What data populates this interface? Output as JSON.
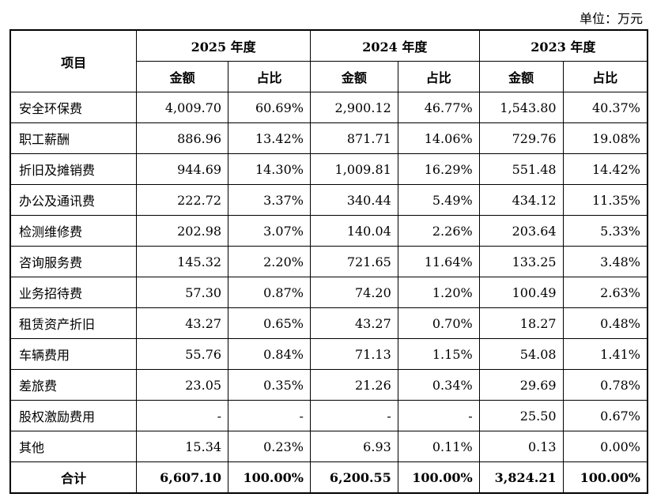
{
  "unit": "单位：万元",
  "header": {
    "item": "项目",
    "years": [
      "2025 年度",
      "2024 年度",
      "2023 年度"
    ],
    "amount": "金额",
    "ratio": "占比"
  },
  "rows": [
    {
      "label": "安全环保费",
      "v": [
        "4,009.70",
        "60.69%",
        "2,900.12",
        "46.77%",
        "1,543.80",
        "40.37%"
      ]
    },
    {
      "label": "职工薪酬",
      "v": [
        "886.96",
        "13.42%",
        "871.71",
        "14.06%",
        "729.76",
        "19.08%"
      ]
    },
    {
      "label": "折旧及摊销费",
      "v": [
        "944.69",
        "14.30%",
        "1,009.81",
        "16.29%",
        "551.48",
        "14.42%"
      ]
    },
    {
      "label": "办公及通讯费",
      "v": [
        "222.72",
        "3.37%",
        "340.44",
        "5.49%",
        "434.12",
        "11.35%"
      ]
    },
    {
      "label": "检测维修费",
      "v": [
        "202.98",
        "3.07%",
        "140.04",
        "2.26%",
        "203.64",
        "5.33%"
      ]
    },
    {
      "label": "咨询服务费",
      "v": [
        "145.32",
        "2.20%",
        "721.65",
        "11.64%",
        "133.25",
        "3.48%"
      ]
    },
    {
      "label": "业务招待费",
      "v": [
        "57.30",
        "0.87%",
        "74.20",
        "1.20%",
        "100.49",
        "2.63%"
      ]
    },
    {
      "label": "租赁资产折旧",
      "v": [
        "43.27",
        "0.65%",
        "43.27",
        "0.70%",
        "18.27",
        "0.48%"
      ]
    },
    {
      "label": "车辆费用",
      "v": [
        "55.76",
        "0.84%",
        "71.13",
        "1.15%",
        "54.08",
        "1.41%"
      ]
    },
    {
      "label": "差旅费",
      "v": [
        "23.05",
        "0.35%",
        "21.26",
        "0.34%",
        "29.69",
        "0.78%"
      ]
    },
    {
      "label": "股权激励费用",
      "v": [
        "-",
        "-",
        "-",
        "-",
        "25.50",
        "0.67%"
      ]
    },
    {
      "label": "其他",
      "v": [
        "15.34",
        "0.23%",
        "6.93",
        "0.11%",
        "0.13",
        "0.00%"
      ]
    }
  ],
  "total": {
    "label": "合计",
    "v": [
      "6,607.10",
      "100.00%",
      "6,200.55",
      "100.00%",
      "3,824.21",
      "100.00%"
    ]
  }
}
